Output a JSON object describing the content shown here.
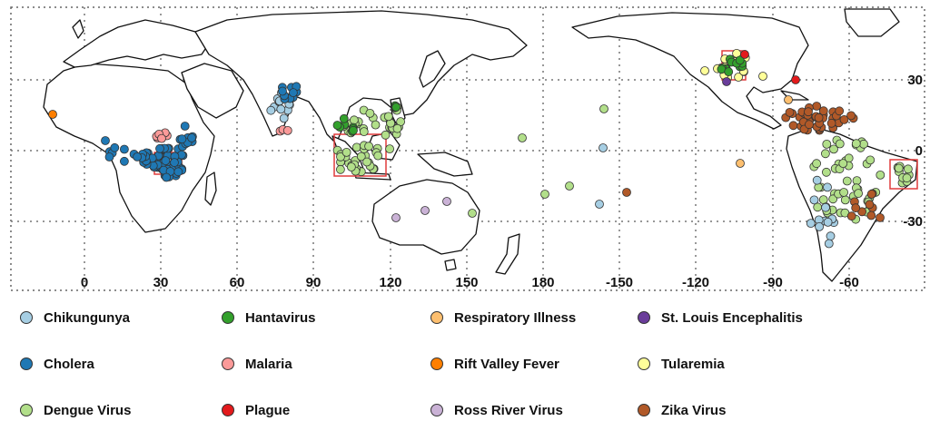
{
  "map": {
    "lon_labels": [
      "0",
      "30",
      "60",
      "90",
      "120",
      "150",
      "180",
      "-150",
      "-120",
      "-90",
      "-60"
    ],
    "lat_labels": [
      "30",
      "0",
      "-30"
    ]
  },
  "legend": {
    "items": [
      {
        "label": "Chikungunya",
        "color": "#a6cee3"
      },
      {
        "label": "Hantavirus",
        "color": "#33a02c"
      },
      {
        "label": "Respiratory Illness",
        "color": "#fdbf6f"
      },
      {
        "label": "St. Louis Encephalitis",
        "color": "#6a3d9a"
      },
      {
        "label": "Cholera",
        "color": "#1f78b4"
      },
      {
        "label": "Malaria",
        "color": "#fb9a99"
      },
      {
        "label": "Rift Valley Fever",
        "color": "#ff7f00"
      },
      {
        "label": "Tularemia",
        "color": "#ffff99"
      },
      {
        "label": "Dengue Virus",
        "color": "#b2df8a"
      },
      {
        "label": "Plague",
        "color": "#e31a1c"
      },
      {
        "label": "Ross River Virus",
        "color": "#cab2d6"
      },
      {
        "label": "Zika Virus",
        "color": "#b15928"
      }
    ]
  }
}
